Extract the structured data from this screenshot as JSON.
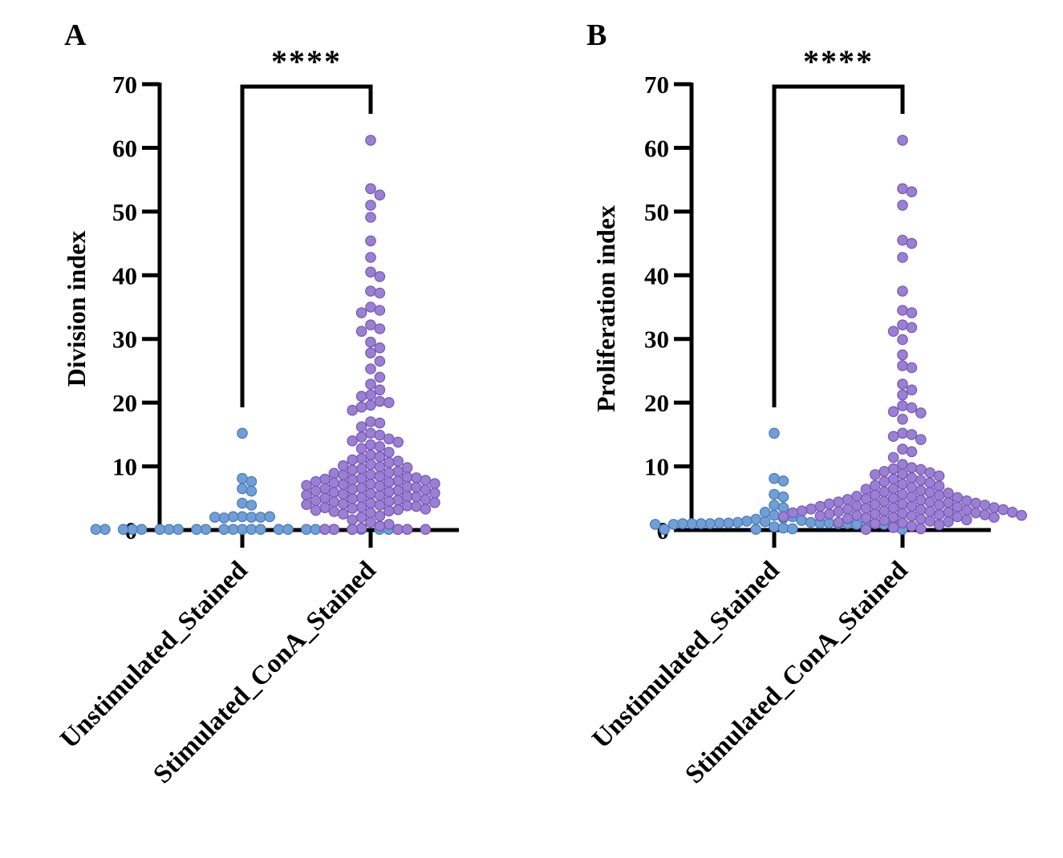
{
  "chart_data": [
    {
      "type": "scatter",
      "panel": "A",
      "title": "",
      "xlabel": "",
      "ylabel": "Division index",
      "ylim": [
        0,
        70
      ],
      "yticks": [
        "0",
        "10",
        "20",
        "30",
        "40",
        "50",
        "60",
        "70"
      ],
      "categories": [
        "Unstimulated_Stained",
        "Stimulated_ConA_Stained"
      ],
      "significance": "****",
      "grid": false,
      "legend": "none",
      "series": [
        {
          "category": "Unstimulated_Stained",
          "color": "#6f9fd8",
          "values": [
            15.2,
            8.1,
            7.6,
            6.5,
            6.1,
            4.2,
            3.9,
            2.1,
            2.0,
            2.1,
            2.0,
            1.9,
            2.0,
            2.1,
            0.1,
            0.1,
            0.1,
            0.1,
            0.1,
            0.1,
            0.1,
            0.1,
            0.1,
            0.1,
            0.1,
            0.1,
            0.1,
            0.1,
            0.1,
            0.1,
            0.1,
            0.1,
            0.1,
            0.1,
            0.1,
            0.1,
            0.1,
            0.1,
            0.1,
            0.1
          ]
        },
        {
          "category": "Stimulated_ConA_Stained",
          "color": "#9b7fd4",
          "values": [
            61.2,
            53.6,
            52.6,
            51.0,
            49.1,
            45.4,
            42.8,
            40.5,
            39.8,
            37.5,
            37.2,
            35.0,
            34.5,
            34.1,
            32.2,
            31.6,
            31.2,
            29.5,
            28.6,
            27.8,
            26.5,
            25.3,
            24.0,
            22.9,
            22.0,
            21.2,
            21.0,
            20.2,
            20.0,
            19.6,
            19.3,
            18.8,
            17.0,
            16.8,
            16.2,
            15.2,
            14.9,
            14.6,
            14.3,
            14.0,
            13.8,
            13.4,
            13.1,
            12.8,
            12.2,
            11.8,
            11.5,
            11.2,
            11.0,
            10.8,
            10.6,
            10.3,
            10.1,
            9.9,
            9.8,
            9.6,
            9.4,
            9.2,
            9.0,
            8.9,
            8.7,
            8.6,
            8.4,
            8.3,
            8.2,
            8.1,
            8.0,
            7.9,
            7.8,
            7.7,
            7.6,
            7.5,
            7.4,
            7.3,
            7.2,
            7.1,
            7.0,
            6.9,
            6.8,
            6.7,
            6.6,
            6.5,
            6.4,
            6.3,
            6.2,
            6.1,
            6.0,
            5.9,
            5.8,
            5.7,
            5.6,
            5.5,
            5.4,
            5.3,
            5.2,
            5.1,
            5.0,
            4.9,
            4.8,
            4.7,
            4.6,
            4.5,
            4.4,
            4.3,
            4.2,
            4.1,
            4.0,
            3.9,
            3.8,
            3.7,
            3.6,
            3.5,
            3.4,
            3.3,
            3.2,
            3.1,
            3.0,
            2.9,
            2.7,
            2.5,
            2.2,
            2.0,
            1.6,
            1.2,
            0.9,
            0.6,
            0.3,
            0.1,
            0.1,
            0.1,
            0.1,
            0.1,
            0.1
          ]
        }
      ]
    },
    {
      "type": "scatter",
      "panel": "B",
      "title": "",
      "xlabel": "",
      "ylabel": "Proliferation index",
      "ylim": [
        0,
        70
      ],
      "yticks": [
        "0",
        "10",
        "20",
        "30",
        "40",
        "50",
        "60",
        "70"
      ],
      "categories": [
        "Unstimulated_Stained",
        "Stimulated_ConA_Stained"
      ],
      "significance": "****",
      "grid": false,
      "legend": "none",
      "series": [
        {
          "category": "Unstimulated_Stained",
          "color": "#6f9fd8",
          "values": [
            15.2,
            8.1,
            7.7,
            5.6,
            5.2,
            3.9,
            3.5,
            2.8,
            2.3,
            2.1,
            1.9,
            1.7,
            1.5,
            1.4,
            1.3,
            1.2,
            1.2,
            1.1,
            1.1,
            1.1,
            1.1,
            1.0,
            1.0,
            1.0,
            1.0,
            1.0,
            1.0,
            1.0,
            1.0,
            0.9,
            0.9,
            0.9,
            0.9,
            0.9,
            0.5,
            0.3,
            0.2,
            0.1,
            0.1,
            0.1
          ]
        },
        {
          "category": "Stimulated_ConA_Stained",
          "color": "#9b7fd4",
          "values": [
            61.2,
            53.6,
            53.1,
            51.0,
            45.5,
            45.0,
            42.8,
            37.5,
            34.5,
            34.1,
            32.2,
            31.8,
            31.2,
            29.9,
            27.5,
            25.8,
            25.5,
            22.9,
            22.0,
            21.2,
            19.5,
            19.2,
            18.6,
            18.4,
            17.4,
            15.2,
            15.0,
            14.7,
            14.2,
            12.7,
            12.3,
            11.4,
            10.3,
            9.8,
            9.6,
            9.5,
            9.2,
            9.0,
            8.8,
            8.7,
            8.5,
            8.2,
            8.0,
            7.8,
            7.6,
            7.4,
            7.2,
            7.0,
            6.9,
            6.7,
            6.5,
            6.4,
            6.2,
            6.0,
            5.9,
            5.8,
            5.6,
            5.5,
            5.4,
            5.3,
            5.2,
            5.1,
            5.0,
            4.9,
            4.8,
            4.7,
            4.6,
            4.5,
            4.4,
            4.4,
            4.3,
            4.2,
            4.1,
            4.1,
            4.0,
            3.9,
            3.9,
            3.8,
            3.7,
            3.7,
            3.6,
            3.5,
            3.5,
            3.4,
            3.3,
            3.3,
            3.2,
            3.2,
            3.1,
            3.0,
            3.0,
            2.9,
            2.9,
            2.8,
            2.8,
            2.7,
            2.7,
            2.6,
            2.5,
            2.5,
            2.4,
            2.4,
            2.3,
            2.3,
            2.2,
            2.2,
            2.1,
            2.1,
            2.0,
            2.0,
            1.9,
            1.8,
            1.7,
            1.6,
            1.5,
            1.4,
            1.3,
            1.2,
            1.1,
            1.0,
            0.8,
            0.6,
            0.4,
            0.2,
            0.1
          ]
        }
      ]
    }
  ]
}
